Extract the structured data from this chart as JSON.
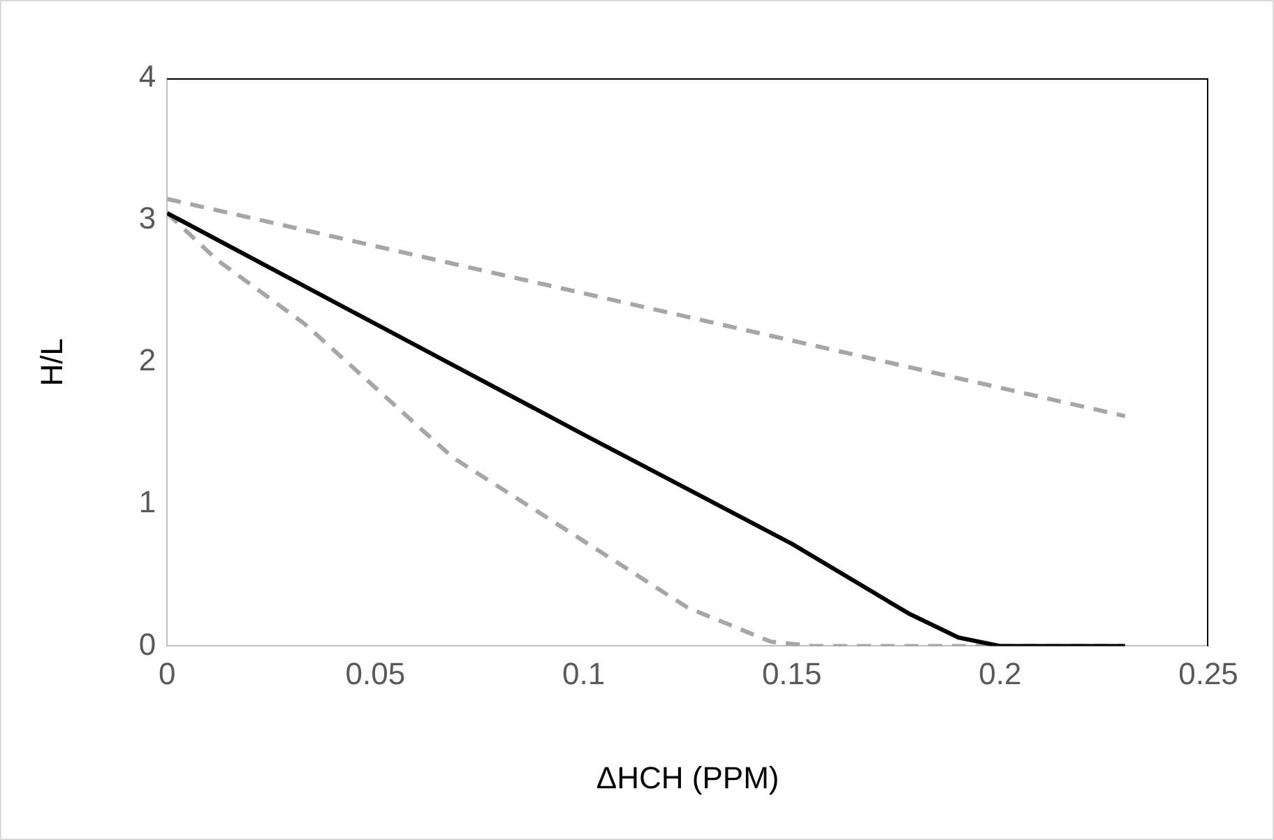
{
  "chart_data": {
    "type": "line",
    "xlabel": "ΔHCH (PPM)",
    "ylabel": "H/L",
    "xlim": [
      0,
      0.25
    ],
    "xticks": [
      0,
      0.05,
      0.1,
      0.15,
      0.2,
      0.25
    ],
    "ylim": [
      0,
      4
    ],
    "yticks": [
      0,
      1,
      2,
      3,
      4
    ],
    "grid": false,
    "legend": false,
    "marker": "none",
    "series": [
      {
        "color": "#000000",
        "line_style": "solid",
        "x": [
          0,
          0.05,
          0.1,
          0.15,
          0.178,
          0.19,
          0.2,
          0.23
        ],
        "values": [
          3.05,
          2.27,
          1.49,
          0.72,
          0.23,
          0.06,
          0,
          0
        ]
      },
      {
        "color": "#a6a6a6",
        "line_style": "dashed",
        "x": [
          0,
          0.23
        ],
        "values": [
          3.15,
          1.62
        ]
      },
      {
        "color": "#a6a6a6",
        "line_style": "dashed",
        "x": [
          0,
          0.012,
          0.033,
          0.05,
          0.0685,
          0.1,
          0.125,
          0.145,
          0.155,
          0.23
        ],
        "values": [
          3.05,
          2.72,
          2.27,
          1.82,
          1.33,
          0.74,
          0.27,
          0.03,
          0,
          0
        ]
      }
    ]
  }
}
